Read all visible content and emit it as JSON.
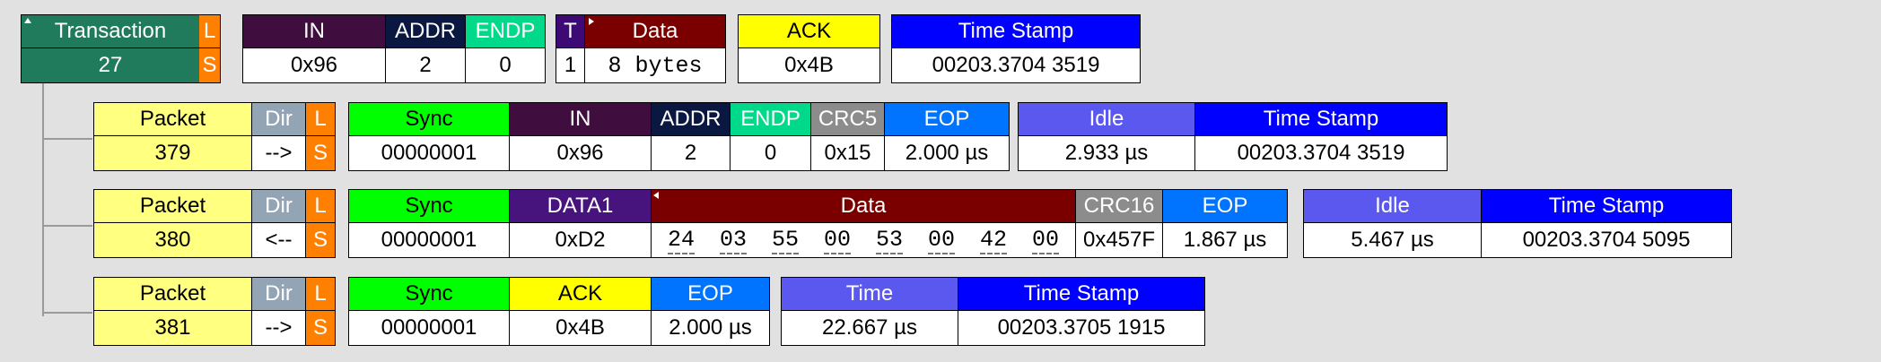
{
  "colors": {
    "transaction": "#207a5c",
    "packet": "#ffff80",
    "dir": "#93a5b4",
    "ls": "#ff8000",
    "sync": "#00ff00",
    "in": "#3f0e3f",
    "addr": "#0a1740",
    "endp": "#00d98a",
    "token": "#3d0a75",
    "data": "#7a0000",
    "ack": "#ffff00",
    "time": "#0000ff",
    "crc": "#8c8c8c",
    "eop": "#0073ff",
    "idle": "#5b58f0",
    "data1": "#47137d"
  },
  "transaction": {
    "label": "Transaction",
    "number": "27",
    "l": "L",
    "s": "S",
    "in_label": "IN",
    "in_value": "0x96",
    "addr_label": "ADDR",
    "addr_value": "2",
    "endp_label": "ENDP",
    "endp_value": "0",
    "t_label": "T",
    "t_value": "1",
    "data_label": "Data",
    "data_value": "8 bytes",
    "ack_label": "ACK",
    "ack_value": "0x4B",
    "ts_label": "Time Stamp",
    "ts_value": "00203.3704 3519"
  },
  "packets": [
    {
      "label": "Packet",
      "number": "379",
      "dir_label": "Dir",
      "dir": "-->",
      "l": "L",
      "s": "S",
      "sync_label": "Sync",
      "sync": "00000001",
      "in_label": "IN",
      "in_value": "0x96",
      "addr_label": "ADDR",
      "addr_value": "2",
      "endp_label": "ENDP",
      "endp_value": "0",
      "crc_label": "CRC5",
      "crc_value": "0x15",
      "eop_label": "EOP",
      "eop_value": "2.000 µs",
      "idle_label": "Idle",
      "idle_value": "2.933 µs",
      "ts_label": "Time Stamp",
      "ts_value": "00203.3704 3519"
    },
    {
      "label": "Packet",
      "number": "380",
      "dir_label": "Dir",
      "dir": "<--",
      "l": "L",
      "s": "S",
      "sync_label": "Sync",
      "sync": "00000001",
      "pid_label": "DATA1",
      "pid_value": "0xD2",
      "data_label": "Data",
      "data_bytes": [
        "24",
        "03",
        "55",
        "00",
        "53",
        "00",
        "42",
        "00"
      ],
      "crc_label": "CRC16",
      "crc_value": "0x457F",
      "eop_label": "EOP",
      "eop_value": "1.867 µs",
      "idle_label": "Idle",
      "idle_value": "5.467 µs",
      "ts_label": "Time Stamp",
      "ts_value": "00203.3704 5095"
    },
    {
      "label": "Packet",
      "number": "381",
      "dir_label": "Dir",
      "dir": "-->",
      "l": "L",
      "s": "S",
      "sync_label": "Sync",
      "sync": "00000001",
      "ack_label": "ACK",
      "ack_value": "0x4B",
      "eop_label": "EOP",
      "eop_value": "2.000 µs",
      "time_label": "Time",
      "time_value": "22.667 µs",
      "ts_label": "Time Stamp",
      "ts_value": "00203.3705 1915"
    }
  ]
}
